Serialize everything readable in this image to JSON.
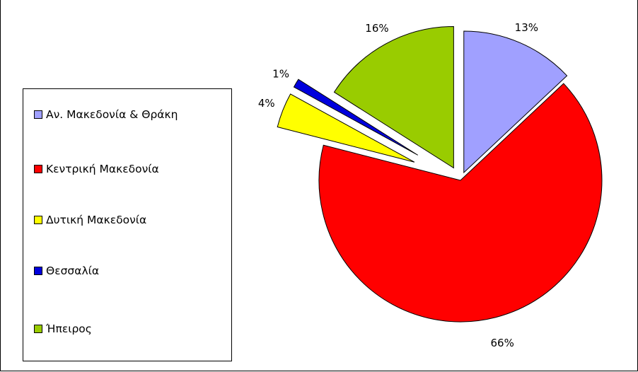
{
  "chart_data": {
    "type": "pie",
    "title": "",
    "legend_position": "left",
    "categories": [
      "Αν. Μακεδονία & Θράκη",
      "Κεντρική Μακεδονία",
      "Δυτική Μακεδονία",
      "Θεσσαλία",
      "Ήπειρος"
    ],
    "values": [
      13,
      66,
      4,
      1,
      16
    ],
    "labels": [
      "13%",
      "66%",
      "4%",
      "1%",
      "16%"
    ],
    "colors": [
      "#a0a0ff",
      "#ff0000",
      "#ffff00",
      "#0000dd",
      "#99cc00"
    ],
    "exploded": true
  }
}
